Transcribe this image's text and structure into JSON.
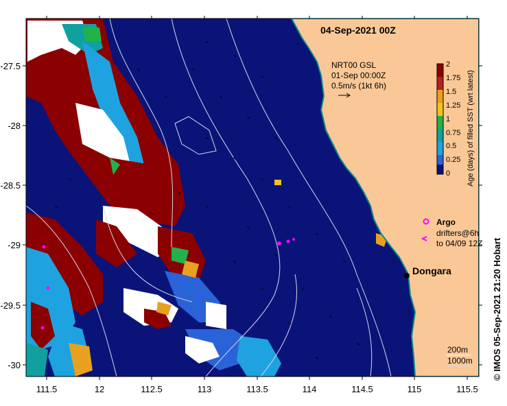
{
  "title": "04-Sep-2021 00Z",
  "current_info": {
    "lines": [
      "NRT00 GSL",
      "01-Sep 00:00Z",
      "0.5m/s (1kt 6h)"
    ]
  },
  "colorbar": {
    "label": "Age (days) of filled SST (wrt latest)",
    "ticks": [
      "2",
      "1.75",
      "1.5",
      "1.25",
      "1",
      "0.75",
      "0.5",
      "0.25",
      "0"
    ],
    "colors": [
      "#8b0000",
      "#b22222",
      "#e8a020",
      "#f2c418",
      "#22b24c",
      "#11a0a0",
      "#1ea3e0",
      "#2a63d8",
      "#0a1478"
    ]
  },
  "legend": {
    "argo_label": "Argo",
    "drifters_line1": "drifters@6h",
    "drifters_line2": "to 04/09 12Z",
    "argo_color": "#ff00ff"
  },
  "place": {
    "name": "Dongara"
  },
  "depth_legend": {
    "line1": "200m",
    "line2": "1000m"
  },
  "credit": "© IMOS 05-Sep-2021 21:20 Hobart",
  "axes": {
    "x_ticks": [
      "111.5",
      "12",
      "112.5",
      "113",
      "113.5",
      "114",
      "114.5",
      "115",
      "115.5"
    ],
    "y_ticks": [
      "-27.5",
      "-28",
      "-28.5",
      "-29",
      "-29.5",
      "-30"
    ]
  },
  "colors": {
    "ocean": "#0a1478",
    "land": "#fac896",
    "cloud": "#ffffff",
    "frame": "#000000"
  }
}
